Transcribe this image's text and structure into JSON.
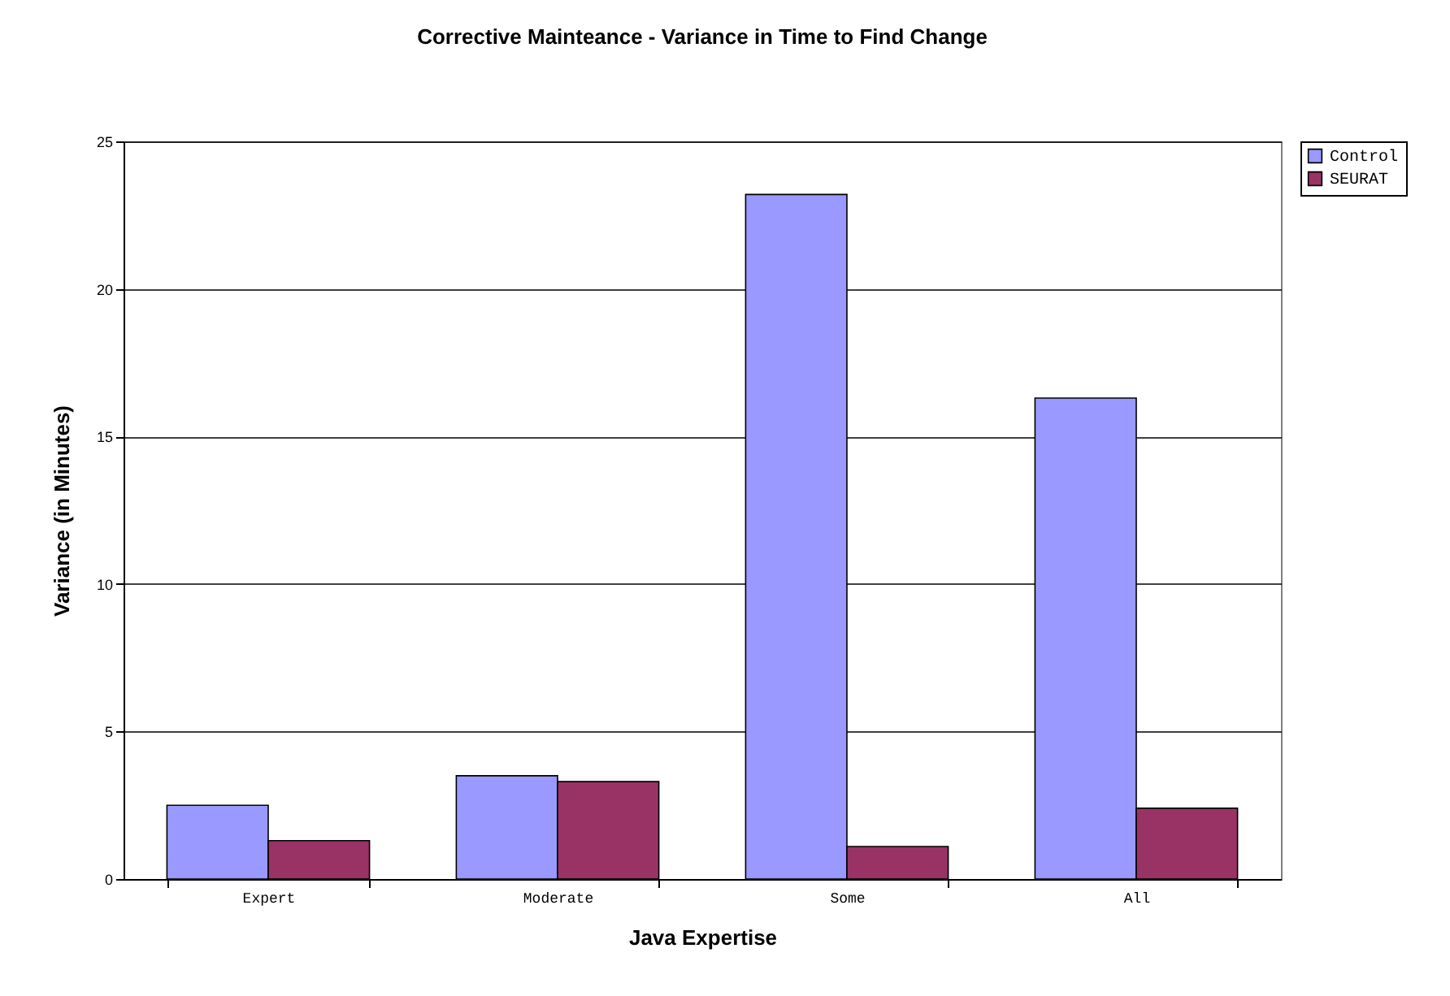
{
  "chart_data": {
    "type": "bar",
    "title": "Corrective Mainteance - Variance in Time to Find Change",
    "xlabel": "Java Expertise",
    "ylabel": "Variance (in Minutes)",
    "categories": [
      "Expert",
      "Moderate",
      "Some",
      "All"
    ],
    "series": [
      {
        "name": "Control",
        "color": "#9999ff",
        "values": [
          2.5,
          3.5,
          23.2,
          16.3
        ]
      },
      {
        "name": "SEURAT",
        "color": "#993366",
        "values": [
          1.3,
          3.3,
          1.1,
          2.4
        ]
      }
    ],
    "ylim": [
      0,
      25
    ],
    "yticks": [
      0,
      5,
      10,
      15,
      20,
      25
    ],
    "grid": "y",
    "legend": "right"
  }
}
